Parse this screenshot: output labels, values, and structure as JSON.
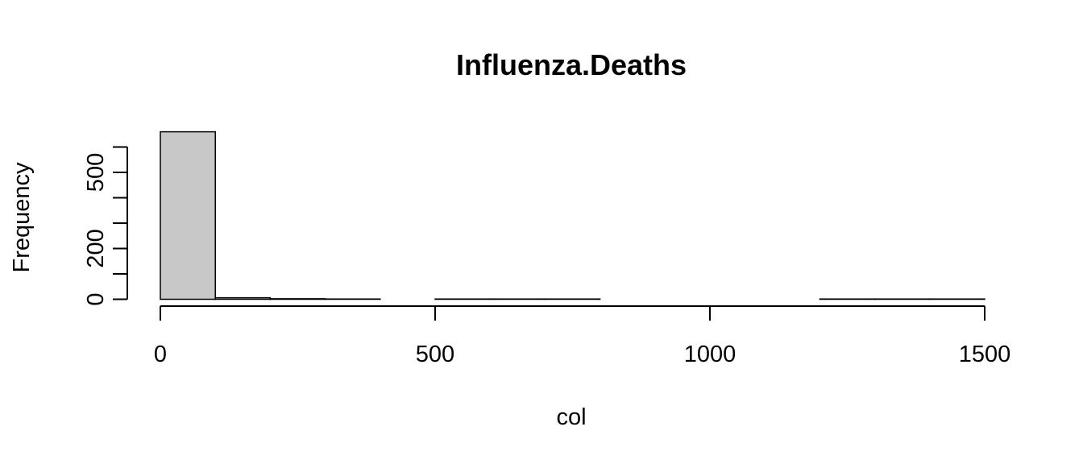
{
  "chart_data": {
    "type": "bar",
    "title": "Influenza.Deaths",
    "xlabel": "col",
    "ylabel": "Frequency",
    "bin_edges": [
      0,
      100,
      200,
      300,
      400,
      500,
      600,
      700,
      800,
      900,
      1000,
      1100,
      1200,
      1300,
      1400,
      1500
    ],
    "values": [
      660,
      6,
      2,
      1,
      0,
      1,
      1,
      1,
      0,
      0,
      0,
      0,
      1,
      1,
      1
    ],
    "xlim": [
      0,
      1500
    ],
    "ylim": [
      0,
      600
    ],
    "x_ticks": [
      0,
      500,
      1000,
      1500
    ],
    "x_tick_labels": [
      "0",
      "500",
      "1000",
      "1500"
    ],
    "y_ticks": [
      0,
      100,
      200,
      300,
      400,
      500,
      600
    ],
    "y_tick_labels": [
      "0",
      "",
      "200",
      "",
      "",
      "500",
      ""
    ],
    "bar_color": "#c8c8c8",
    "grid": false
  }
}
